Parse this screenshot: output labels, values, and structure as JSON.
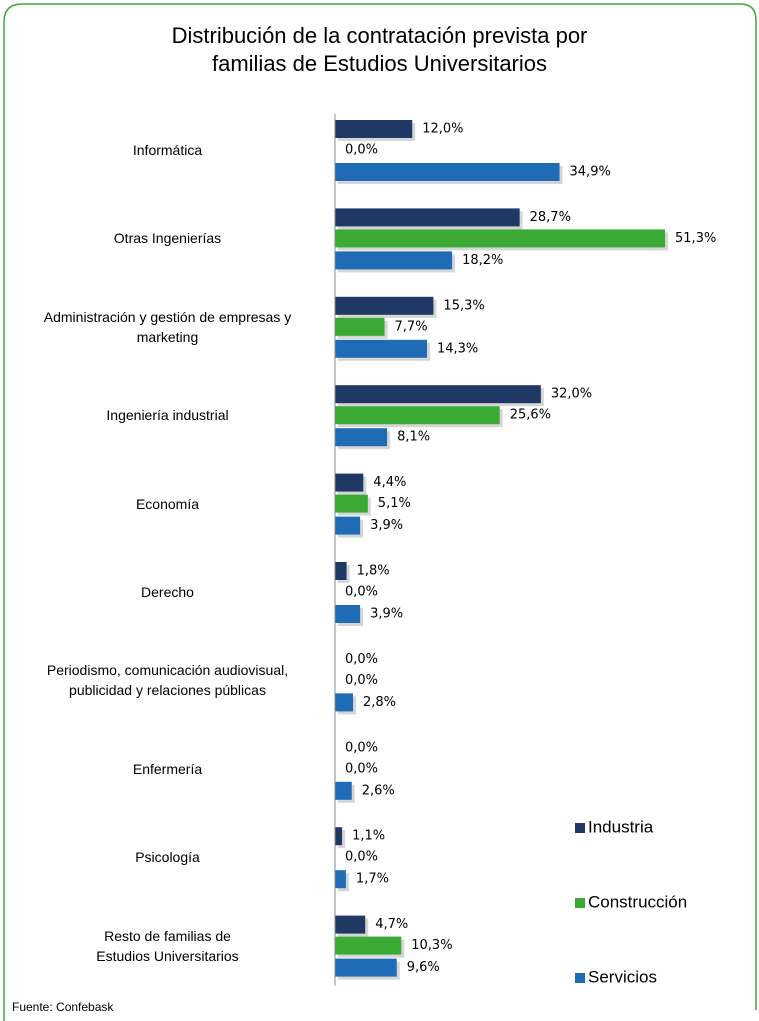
{
  "chart_data": {
    "type": "bar",
    "orientation": "horizontal",
    "title": "Distribución de la contratación prevista por\nfamilias de Estudios Universitarios",
    "categories": [
      "Informática",
      "Otras Ingenierías",
      "Administración y gestión de empresas y\nmarketing",
      "Ingeniería industrial",
      "Economía",
      "Derecho",
      "Periodismo, comunicación audiovisual,\npublicidad y relaciones públicas",
      "Enfermería",
      "Psicología",
      "Resto de familias de\nEstudios Universitarios"
    ],
    "series": [
      {
        "name": "Industria",
        "color": "#1f3864",
        "values": [
          12.0,
          28.7,
          15.3,
          32.0,
          4.4,
          1.8,
          0.0,
          0.0,
          1.1,
          4.7
        ],
        "value_labels": [
          "12,0%",
          "28,7%",
          "15,3%",
          "32,0%",
          "4,4%",
          "1,8%",
          "0,0%",
          "0,0%",
          "1,1%",
          "4,7%"
        ]
      },
      {
        "name": "Construcción",
        "color": "#3aaa35",
        "values": [
          0.0,
          51.3,
          7.7,
          25.6,
          5.1,
          0.0,
          0.0,
          0.0,
          0.0,
          10.3
        ],
        "value_labels": [
          "0,0%",
          "51,3%",
          "7,7%",
          "25,6%",
          "5,1%",
          "0,0%",
          "0,0%",
          "0,0%",
          "0,0%",
          "10,3%"
        ]
      },
      {
        "name": "Servicios",
        "color": "#1f6bb5",
        "values": [
          34.9,
          18.2,
          14.3,
          8.1,
          3.9,
          3.9,
          2.8,
          2.6,
          1.7,
          9.6
        ],
        "value_labels": [
          "34,9%",
          "18,2%",
          "14,3%",
          "8,1%",
          "3,9%",
          "3,9%",
          "2,8%",
          "2,6%",
          "1,7%",
          "9,6%"
        ]
      }
    ],
    "xlim": [
      0,
      60
    ],
    "legend": "right",
    "source": "Fuente: Confebask"
  }
}
